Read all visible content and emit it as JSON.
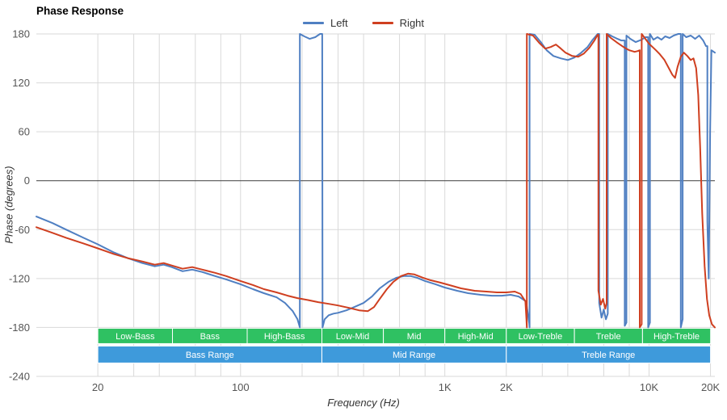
{
  "chart_data": {
    "type": "line",
    "title": "Phase Response",
    "xlabel": "Frequency (Hz)",
    "ylabel": "Phase (degrees)",
    "x_scale": "log",
    "x_range": [
      10,
      21000
    ],
    "y_range": [
      -240,
      180
    ],
    "legend_position": "top-center",
    "grid": true,
    "colors": {
      "grid": "#d9d9d9",
      "zero_line": "#3c3c3c",
      "sub_band": "#2fc162",
      "range_band": "#3e9adb",
      "background": "#ffffff",
      "tick_text": "#555555"
    },
    "y_ticks": [
      180,
      120,
      60,
      0,
      -60,
      -120,
      -180,
      -240
    ],
    "x_ticks": [
      {
        "value": 20,
        "label": "20"
      },
      {
        "value": 100,
        "label": "100"
      },
      {
        "value": 1000,
        "label": "1K"
      },
      {
        "value": 2000,
        "label": "2K"
      },
      {
        "value": 10000,
        "label": "10K"
      },
      {
        "value": 20000,
        "label": "20K"
      }
    ],
    "x_gridlines": [
      20,
      30,
      40,
      60,
      80,
      100,
      200,
      300,
      400,
      600,
      800,
      1000,
      2000,
      3000,
      4000,
      6000,
      8000,
      10000,
      20000
    ],
    "bands": {
      "sub": [
        {
          "label": "Low-Bass",
          "from": 20,
          "to": 46.4
        },
        {
          "label": "Bass",
          "from": 46.4,
          "to": 107.7
        },
        {
          "label": "High-Bass",
          "from": 107.7,
          "to": 250
        },
        {
          "label": "Low-Mid",
          "from": 250,
          "to": 500
        },
        {
          "label": "Mid",
          "from": 500,
          "to": 1000
        },
        {
          "label": "High-Mid",
          "from": 1000,
          "to": 2000
        },
        {
          "label": "Low-Treble",
          "from": 2000,
          "to": 4309
        },
        {
          "label": "Treble",
          "from": 4309,
          "to": 9283
        },
        {
          "label": "High-Treble",
          "from": 9283,
          "to": 20000
        }
      ],
      "ranges": [
        {
          "label": "Bass Range",
          "from": 20,
          "to": 250
        },
        {
          "label": "Mid Range",
          "from": 250,
          "to": 2000
        },
        {
          "label": "Treble Range",
          "from": 2000,
          "to": 20000
        }
      ]
    },
    "series": [
      {
        "name": "Left",
        "color": "#4f7fc2",
        "points": [
          [
            10,
            -44
          ],
          [
            12,
            -52
          ],
          [
            14,
            -60
          ],
          [
            17,
            -70
          ],
          [
            20,
            -78
          ],
          [
            24,
            -88
          ],
          [
            28,
            -95
          ],
          [
            33,
            -101
          ],
          [
            38,
            -105
          ],
          [
            42,
            -103
          ],
          [
            46,
            -106
          ],
          [
            52,
            -111
          ],
          [
            58,
            -109
          ],
          [
            65,
            -112
          ],
          [
            75,
            -117
          ],
          [
            85,
            -121
          ],
          [
            100,
            -127
          ],
          [
            115,
            -133
          ],
          [
            130,
            -138
          ],
          [
            150,
            -143
          ],
          [
            165,
            -150
          ],
          [
            180,
            -160
          ],
          [
            190,
            -170
          ],
          [
            195,
            -180
          ],
          [
            195,
            180
          ],
          [
            205,
            177
          ],
          [
            218,
            174
          ],
          [
            232,
            176
          ],
          [
            245,
            180
          ],
          [
            251,
            180
          ],
          [
            252,
            -180
          ],
          [
            258,
            -170
          ],
          [
            270,
            -165
          ],
          [
            285,
            -163
          ],
          [
            300,
            -162
          ],
          [
            330,
            -159
          ],
          [
            360,
            -155
          ],
          [
            400,
            -150
          ],
          [
            440,
            -142
          ],
          [
            480,
            -132
          ],
          [
            530,
            -124
          ],
          [
            580,
            -119
          ],
          [
            630,
            -117
          ],
          [
            680,
            -117
          ],
          [
            730,
            -119
          ],
          [
            800,
            -123
          ],
          [
            900,
            -127
          ],
          [
            1000,
            -131
          ],
          [
            1150,
            -135
          ],
          [
            1300,
            -138
          ],
          [
            1500,
            -140
          ],
          [
            1700,
            -141
          ],
          [
            1900,
            -141
          ],
          [
            2100,
            -140
          ],
          [
            2300,
            -142
          ],
          [
            2500,
            -148
          ],
          [
            2590,
            -175
          ],
          [
            2600,
            -180
          ],
          [
            2600,
            180
          ],
          [
            2750,
            179
          ],
          [
            2950,
            170
          ],
          [
            3150,
            160
          ],
          [
            3400,
            153
          ],
          [
            3700,
            150
          ],
          [
            4000,
            148
          ],
          [
            4300,
            151
          ],
          [
            4600,
            156
          ],
          [
            5000,
            164
          ],
          [
            5300,
            173
          ],
          [
            5600,
            180
          ],
          [
            5700,
            180
          ],
          [
            5700,
            -150
          ],
          [
            5850,
            -168
          ],
          [
            6000,
            -158
          ],
          [
            6150,
            -170
          ],
          [
            6280,
            -163
          ],
          [
            6280,
            180
          ],
          [
            6600,
            177
          ],
          [
            7000,
            174
          ],
          [
            7300,
            172
          ],
          [
            7600,
            172
          ],
          [
            7600,
            -178
          ],
          [
            7750,
            -174
          ],
          [
            7750,
            178
          ],
          [
            8100,
            174
          ],
          [
            8600,
            170
          ],
          [
            9200,
            173
          ],
          [
            9600,
            176
          ],
          [
            9900,
            176
          ],
          [
            9900,
            -180
          ],
          [
            10100,
            -174
          ],
          [
            10100,
            180
          ],
          [
            10500,
            173
          ],
          [
            11000,
            176
          ],
          [
            11500,
            173
          ],
          [
            12000,
            177
          ],
          [
            12600,
            175
          ],
          [
            13200,
            178
          ],
          [
            13900,
            180
          ],
          [
            14300,
            180
          ],
          [
            14300,
            -180
          ],
          [
            14600,
            -170
          ],
          [
            14600,
            180
          ],
          [
            15200,
            176
          ],
          [
            16000,
            178
          ],
          [
            16800,
            174
          ],
          [
            17600,
            178
          ],
          [
            18400,
            172
          ],
          [
            19000,
            165
          ],
          [
            19300,
            165
          ],
          [
            19300,
            -50
          ],
          [
            19600,
            -120
          ],
          [
            19900,
            60
          ],
          [
            20200,
            160
          ],
          [
            21000,
            157
          ]
        ]
      },
      {
        "name": "Right",
        "color": "#cf3f20",
        "points": [
          [
            10,
            -57
          ],
          [
            12,
            -64
          ],
          [
            14,
            -70
          ],
          [
            17,
            -77
          ],
          [
            20,
            -83
          ],
          [
            24,
            -90
          ],
          [
            28,
            -95
          ],
          [
            33,
            -99
          ],
          [
            38,
            -103
          ],
          [
            42,
            -101
          ],
          [
            46,
            -104
          ],
          [
            52,
            -108
          ],
          [
            58,
            -106
          ],
          [
            65,
            -109
          ],
          [
            75,
            -113
          ],
          [
            85,
            -117
          ],
          [
            100,
            -123
          ],
          [
            115,
            -128
          ],
          [
            130,
            -133
          ],
          [
            150,
            -137
          ],
          [
            170,
            -141
          ],
          [
            190,
            -144
          ],
          [
            210,
            -146
          ],
          [
            240,
            -149
          ],
          [
            270,
            -151
          ],
          [
            300,
            -153
          ],
          [
            340,
            -156
          ],
          [
            380,
            -159
          ],
          [
            420,
            -160
          ],
          [
            450,
            -155
          ],
          [
            480,
            -145
          ],
          [
            520,
            -133
          ],
          [
            560,
            -124
          ],
          [
            610,
            -117
          ],
          [
            660,
            -114
          ],
          [
            710,
            -115
          ],
          [
            780,
            -119
          ],
          [
            850,
            -122
          ],
          [
            950,
            -125
          ],
          [
            1050,
            -128
          ],
          [
            1200,
            -132
          ],
          [
            1400,
            -135
          ],
          [
            1600,
            -136
          ],
          [
            1800,
            -137
          ],
          [
            2000,
            -137
          ],
          [
            2200,
            -136
          ],
          [
            2350,
            -139
          ],
          [
            2480,
            -148
          ],
          [
            2510,
            -170
          ],
          [
            2520,
            -180
          ],
          [
            2520,
            180
          ],
          [
            2700,
            178
          ],
          [
            2900,
            169
          ],
          [
            3100,
            162
          ],
          [
            3300,
            164
          ],
          [
            3500,
            167
          ],
          [
            3700,
            162
          ],
          [
            3900,
            157
          ],
          [
            4200,
            153
          ],
          [
            4500,
            152
          ],
          [
            4800,
            156
          ],
          [
            5100,
            163
          ],
          [
            5400,
            172
          ],
          [
            5600,
            179
          ],
          [
            5650,
            179
          ],
          [
            5650,
            -135
          ],
          [
            5800,
            -152
          ],
          [
            5950,
            -145
          ],
          [
            6100,
            -157
          ],
          [
            6200,
            -150
          ],
          [
            6200,
            180
          ],
          [
            6500,
            175
          ],
          [
            7000,
            169
          ],
          [
            7500,
            164
          ],
          [
            8000,
            160
          ],
          [
            8500,
            158
          ],
          [
            8800,
            159
          ],
          [
            9000,
            160
          ],
          [
            9000,
            -180
          ],
          [
            9200,
            -176
          ],
          [
            9200,
            180
          ],
          [
            9600,
            174
          ],
          [
            10000,
            168
          ],
          [
            10400,
            164
          ],
          [
            10800,
            160
          ],
          [
            11300,
            155
          ],
          [
            11900,
            148
          ],
          [
            12500,
            138
          ],
          [
            13000,
            130
          ],
          [
            13400,
            126
          ],
          [
            13800,
            140
          ],
          [
            14300,
            152
          ],
          [
            14800,
            157
          ],
          [
            15400,
            153
          ],
          [
            16000,
            148
          ],
          [
            16500,
            150
          ],
          [
            17000,
            138
          ],
          [
            17400,
            105
          ],
          [
            17800,
            40
          ],
          [
            18200,
            -40
          ],
          [
            18700,
            -105
          ],
          [
            19200,
            -145
          ],
          [
            19700,
            -165
          ],
          [
            20300,
            -176
          ],
          [
            21000,
            -180
          ]
        ]
      }
    ]
  }
}
